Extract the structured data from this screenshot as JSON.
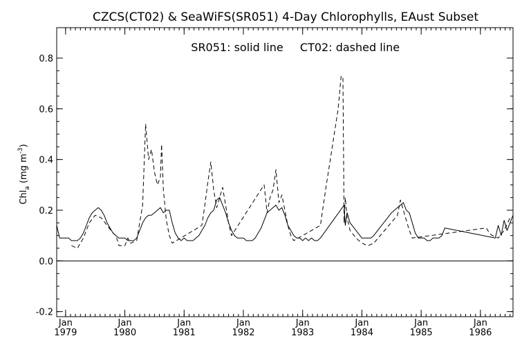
{
  "chart_data": {
    "type": "line",
    "title": "CZCS(CT02) & SeaWiFS(SR051) 4-Day Chlorophylls, EAust Subset",
    "annotation": {
      "solid": "SR051: solid line",
      "dashed": "CT02: dashed line"
    },
    "ylabel": {
      "main": "Chl",
      "sub": "a",
      "units_open": " (mg m",
      "units_sup": "-3",
      "units_close": ")"
    },
    "xlim": [
      1978.85,
      1986.55
    ],
    "ylim": [
      -0.22,
      0.92
    ],
    "yticks": [
      {
        "value": -0.2,
        "label": "-0.2"
      },
      {
        "value": 0.0,
        "label": "0.0"
      },
      {
        "value": 0.2,
        "label": "0.2"
      },
      {
        "value": 0.4,
        "label": "0.4"
      },
      {
        "value": 0.6,
        "label": "0.6"
      },
      {
        "value": 0.8,
        "label": "0.8"
      }
    ],
    "xticks": [
      {
        "value": 1979.0,
        "month": "Jan",
        "year": "1979"
      },
      {
        "value": 1980.0,
        "month": "Jan",
        "year": "1980"
      },
      {
        "value": 1981.0,
        "month": "Jan",
        "year": "1981"
      },
      {
        "value": 1982.0,
        "month": "Jan",
        "year": "1982"
      },
      {
        "value": 1983.0,
        "month": "Jan",
        "year": "1983"
      },
      {
        "value": 1984.0,
        "month": "Jan",
        "year": "1984"
      },
      {
        "value": 1985.0,
        "month": "Jan",
        "year": "1985"
      },
      {
        "value": 1986.0,
        "month": "Jan",
        "year": "1986"
      }
    ],
    "zero_line": 0.0,
    "series": [
      {
        "name": "SR051",
        "style": "solid",
        "x": [
          1978.85,
          1978.9,
          1978.95,
          1979.0,
          1979.05,
          1979.1,
          1979.15,
          1979.2,
          1979.25,
          1979.3,
          1979.35,
          1979.4,
          1979.45,
          1979.5,
          1979.55,
          1979.6,
          1979.65,
          1979.7,
          1979.75,
          1979.8,
          1979.85,
          1979.9,
          1979.95,
          1980.0,
          1980.05,
          1980.1,
          1980.15,
          1980.2,
          1980.25,
          1980.3,
          1980.35,
          1980.4,
          1980.45,
          1980.5,
          1980.55,
          1980.6,
          1980.65,
          1980.7,
          1980.75,
          1980.8,
          1980.85,
          1980.9,
          1980.95,
          1981.0,
          1981.05,
          1981.1,
          1981.15,
          1981.2,
          1981.25,
          1981.3,
          1981.35,
          1981.4,
          1981.45,
          1981.5,
          1981.55,
          1981.6,
          1981.65,
          1981.7,
          1981.75,
          1981.8,
          1981.85,
          1981.9,
          1981.95,
          1982.0,
          1982.05,
          1982.1,
          1982.15,
          1982.2,
          1982.25,
          1982.3,
          1982.35,
          1982.4,
          1982.45,
          1982.5,
          1982.55,
          1982.6,
          1982.65,
          1982.7,
          1982.75,
          1982.8,
          1982.85,
          1982.9,
          1982.95,
          1983.0,
          1983.05,
          1983.1,
          1983.15,
          1983.2,
          1983.25,
          1983.3,
          1983.7,
          1983.72,
          1983.75,
          1983.8,
          1983.9,
          1984.0,
          1984.1,
          1984.15,
          1984.2,
          1984.3,
          1984.4,
          1984.5,
          1984.6,
          1984.65,
          1984.7,
          1984.75,
          1984.8,
          1984.85,
          1984.9,
          1984.95,
          1985.0,
          1985.05,
          1985.1,
          1985.15,
          1985.2,
          1985.25,
          1985.3,
          1985.35,
          1985.4,
          1986.25,
          1986.3,
          1986.35,
          1986.4,
          1986.45,
          1986.5,
          1986.55
        ],
        "y": [
          0.14,
          0.09,
          0.09,
          0.09,
          0.09,
          0.08,
          0.08,
          0.08,
          0.09,
          0.11,
          0.14,
          0.17,
          0.19,
          0.2,
          0.21,
          0.2,
          0.18,
          0.15,
          0.13,
          0.11,
          0.1,
          0.09,
          0.09,
          0.09,
          0.08,
          0.08,
          0.08,
          0.09,
          0.12,
          0.15,
          0.17,
          0.18,
          0.18,
          0.19,
          0.2,
          0.21,
          0.19,
          0.2,
          0.2,
          0.15,
          0.11,
          0.09,
          0.08,
          0.09,
          0.08,
          0.08,
          0.08,
          0.09,
          0.1,
          0.12,
          0.14,
          0.17,
          0.19,
          0.2,
          0.24,
          0.25,
          0.22,
          0.19,
          0.15,
          0.12,
          0.1,
          0.09,
          0.09,
          0.09,
          0.08,
          0.08,
          0.08,
          0.09,
          0.11,
          0.13,
          0.16,
          0.19,
          0.2,
          0.21,
          0.22,
          0.2,
          0.21,
          0.18,
          0.14,
          0.12,
          0.1,
          0.09,
          0.09,
          0.08,
          0.09,
          0.08,
          0.09,
          0.08,
          0.08,
          0.09,
          0.22,
          0.14,
          0.19,
          0.15,
          0.12,
          0.09,
          0.09,
          0.09,
          0.1,
          0.13,
          0.16,
          0.19,
          0.21,
          0.22,
          0.23,
          0.2,
          0.19,
          0.15,
          0.11,
          0.09,
          0.09,
          0.09,
          0.08,
          0.08,
          0.09,
          0.09,
          0.09,
          0.1,
          0.13,
          0.09,
          0.14,
          0.1,
          0.16,
          0.12,
          0.15,
          0.18
        ]
      },
      {
        "name": "CT02",
        "style": "dashed",
        "x": [
          1979.1,
          1979.2,
          1979.3,
          1979.4,
          1979.5,
          1979.6,
          1979.7,
          1979.8,
          1979.85,
          1979.9,
          1980.0,
          1980.05,
          1980.1,
          1980.2,
          1980.3,
          1980.35,
          1980.4,
          1980.45,
          1980.5,
          1980.55,
          1980.6,
          1980.62,
          1980.65,
          1980.7,
          1980.75,
          1980.8,
          1981.3,
          1981.35,
          1981.4,
          1981.45,
          1981.5,
          1981.55,
          1981.6,
          1981.65,
          1981.7,
          1981.75,
          1981.8,
          1982.35,
          1982.4,
          1982.45,
          1982.5,
          1982.55,
          1982.6,
          1982.65,
          1982.7,
          1982.75,
          1982.8,
          1982.85,
          1983.3,
          1983.4,
          1983.5,
          1983.6,
          1983.65,
          1983.68,
          1983.7,
          1983.72,
          1983.75,
          1983.8,
          1983.9,
          1984.0,
          1984.1,
          1984.2,
          1984.6,
          1984.65,
          1984.7,
          1984.75,
          1984.8,
          1984.85,
          1986.1,
          1986.15,
          1986.2,
          1986.3,
          1986.4,
          1986.5
        ],
        "y": [
          0.06,
          0.05,
          0.09,
          0.15,
          0.18,
          0.17,
          0.14,
          0.11,
          0.1,
          0.06,
          0.06,
          0.09,
          0.07,
          0.08,
          0.22,
          0.54,
          0.4,
          0.44,
          0.35,
          0.3,
          0.33,
          0.46,
          0.28,
          0.16,
          0.1,
          0.07,
          0.14,
          0.22,
          0.31,
          0.39,
          0.28,
          0.21,
          0.25,
          0.29,
          0.22,
          0.15,
          0.1,
          0.3,
          0.19,
          0.25,
          0.28,
          0.36,
          0.23,
          0.26,
          0.2,
          0.14,
          0.1,
          0.08,
          0.14,
          0.3,
          0.45,
          0.6,
          0.73,
          0.72,
          0.15,
          0.25,
          0.17,
          0.12,
          0.09,
          0.07,
          0.06,
          0.07,
          0.18,
          0.24,
          0.2,
          0.16,
          0.12,
          0.09,
          0.13,
          0.11,
          0.1,
          0.09,
          0.12,
          0.17
        ]
      }
    ]
  }
}
